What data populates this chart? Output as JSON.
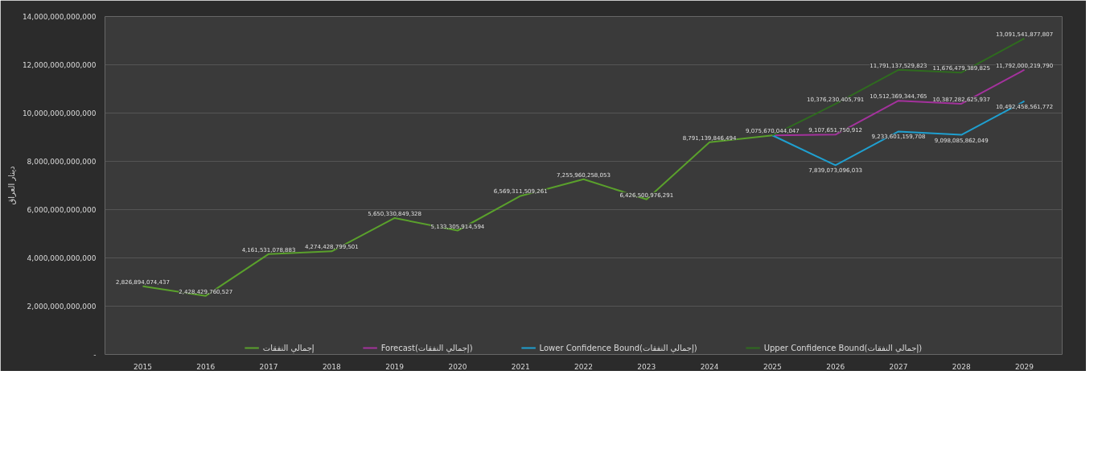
{
  "chart_data": {
    "type": "line",
    "ylabel": "دينار العراق",
    "categories": [
      "2015",
      "2016",
      "2017",
      "2018",
      "2019",
      "2020",
      "2021",
      "2022",
      "2023",
      "2024",
      "2025",
      "2026",
      "2027",
      "2028",
      "2029"
    ],
    "ylim": [
      0,
      14000000000000
    ],
    "yticks": [
      {
        "value": 0,
        "label": "-"
      },
      {
        "value": 2000000000000,
        "label": "2,000,000,000,000"
      },
      {
        "value": 4000000000000,
        "label": "4,000,000,000,000"
      },
      {
        "value": 6000000000000,
        "label": "6,000,000,000,000"
      },
      {
        "value": 8000000000000,
        "label": "8,000,000,000,000"
      },
      {
        "value": 10000000000000,
        "label": "10,000,000,000,000"
      },
      {
        "value": 12000000000000,
        "label": "12,000,000,000,000"
      },
      {
        "value": 14000000000000,
        "label": "14,000,000,000,000"
      }
    ],
    "grid": "y",
    "legend": "bottom",
    "marker": "none",
    "line_style": "solid",
    "series": [
      {
        "name": "إجمالي النفقات",
        "color": "#5aa02c",
        "values": [
          2826894074437,
          2428429760527,
          4161531078883,
          4274428799501,
          5650330849328,
          5133305914594,
          6569311509261,
          7255960258053,
          6426500976291,
          8791139846494,
          9075670044047,
          null,
          null,
          null,
          null
        ],
        "value_labels": [
          "2,826,894,074,437",
          "2,428,429,760,527",
          "4,161,531,078,883",
          "4,274,428,799,501",
          "5,650,330,849,328",
          "5,133,305,914,594",
          "6,569,311,509,261",
          "7,255,960,258,053",
          "6,426,500,976,291",
          "8,791,139,846,494",
          "9,075,670,044,047",
          null,
          null,
          null,
          null
        ]
      },
      {
        "name": "Forecast(إجمالي النفقات)",
        "color": "#a3329c",
        "values": [
          null,
          null,
          null,
          null,
          null,
          null,
          null,
          null,
          null,
          null,
          9075670044047,
          9107651750912,
          10512369344765,
          10387282625937,
          11792000219790
        ],
        "value_labels": [
          null,
          null,
          null,
          null,
          null,
          null,
          null,
          null,
          null,
          null,
          null,
          "9,107,651,750,912",
          "10,512,369,344,765",
          "10,387,282,625,937",
          "11,792,000,219,790"
        ]
      },
      {
        "name": "Lower Confidence Bound(إجمالي النفقات)",
        "color": "#1f9fcf",
        "values": [
          null,
          null,
          null,
          null,
          null,
          null,
          null,
          null,
          null,
          null,
          9075670044047,
          7839073096033,
          9233601159708,
          9098085862049,
          10492458561772
        ],
        "value_labels": [
          null,
          null,
          null,
          null,
          null,
          null,
          null,
          null,
          null,
          null,
          null,
          "7,839,073,096,033",
          "9,233,601,159,708",
          "9,098,085,862,049",
          "10,492,458,561,772"
        ]
      },
      {
        "name": "Upper Confidence Bound(إجمالي النفقات)",
        "color": "#2f6b1f",
        "values": [
          null,
          null,
          null,
          null,
          null,
          null,
          null,
          null,
          null,
          null,
          9075670044047,
          10376230405791,
          11791137529823,
          11676479389825,
          13091541877807
        ],
        "value_labels": [
          null,
          null,
          null,
          null,
          null,
          null,
          null,
          null,
          null,
          null,
          null,
          "10,376,230,405,791",
          "11,791,137,529,823",
          "11,676,479,389,825",
          "13,091,541,877,807"
        ]
      }
    ]
  }
}
